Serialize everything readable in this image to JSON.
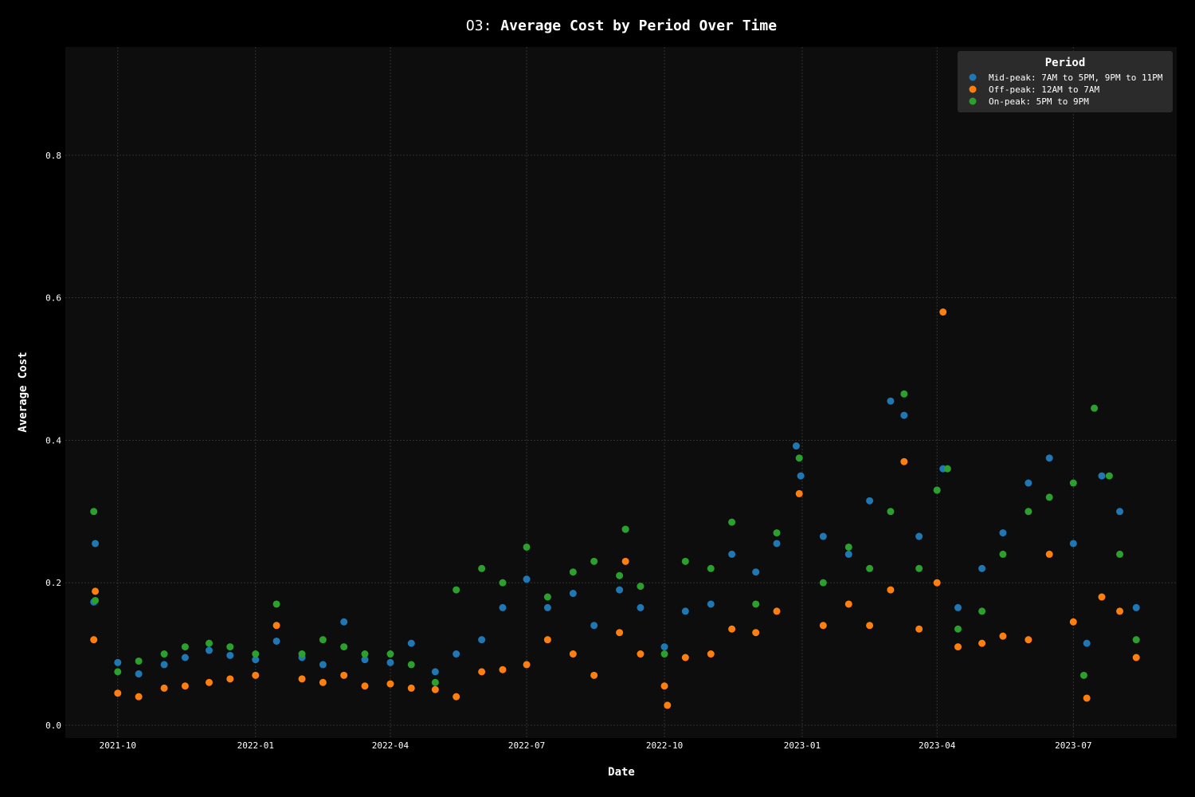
{
  "chart_data": {
    "type": "scatter",
    "title_prefix": "O3:",
    "title_main": "Average Cost by Period Over Time",
    "xlabel": "Date",
    "ylabel": "Average Cost",
    "ylim": [
      -0.018,
      0.952
    ],
    "xlim": [
      "2021-08-27",
      "2023-09-08"
    ],
    "yticks": [
      0.0,
      0.2,
      0.4,
      0.6,
      0.8
    ],
    "ytick_labels": [
      "0.0",
      "0.2",
      "0.4",
      "0.6",
      "0.8"
    ],
    "xticks": [
      "2021-10-01",
      "2022-01-01",
      "2022-04-01",
      "2022-07-01",
      "2022-10-01",
      "2023-01-01",
      "2023-04-01",
      "2023-07-01"
    ],
    "xtick_labels": [
      "2021-10",
      "2022-01",
      "2022-04",
      "2022-07",
      "2022-10",
      "2023-01",
      "2023-04",
      "2023-07"
    ],
    "grid": true,
    "legend": {
      "title": "Period",
      "position": "top-right"
    },
    "colors": {
      "background": "#000000",
      "plot_background": "#0d0d0d",
      "grid": "#3a3a3a",
      "legend_background": "#2b2b2b"
    },
    "series": [
      {
        "name": "Mid-peak: 7AM to 5PM, 9PM to 11PM",
        "color": "#1f77b4",
        "points": [
          [
            "2021-09-15",
            0.173
          ],
          [
            "2021-09-16",
            0.255
          ],
          [
            "2021-10-01",
            0.088
          ],
          [
            "2021-10-15",
            0.072
          ],
          [
            "2021-11-01",
            0.085
          ],
          [
            "2021-11-15",
            0.095
          ],
          [
            "2021-12-01",
            0.105
          ],
          [
            "2021-12-15",
            0.098
          ],
          [
            "2022-01-01",
            0.092
          ],
          [
            "2022-01-15",
            0.118
          ],
          [
            "2022-02-01",
            0.095
          ],
          [
            "2022-02-15",
            0.085
          ],
          [
            "2022-03-01",
            0.145
          ],
          [
            "2022-03-15",
            0.092
          ],
          [
            "2022-04-01",
            0.088
          ],
          [
            "2022-04-15",
            0.115
          ],
          [
            "2022-05-01",
            0.075
          ],
          [
            "2022-05-15",
            0.1
          ],
          [
            "2022-06-01",
            0.12
          ],
          [
            "2022-06-15",
            0.165
          ],
          [
            "2022-07-01",
            0.205
          ],
          [
            "2022-07-15",
            0.165
          ],
          [
            "2022-08-01",
            0.185
          ],
          [
            "2022-08-15",
            0.14
          ],
          [
            "2022-09-01",
            0.19
          ],
          [
            "2022-09-05",
            0.275
          ],
          [
            "2022-09-15",
            0.165
          ],
          [
            "2022-10-01",
            0.11
          ],
          [
            "2022-10-15",
            0.16
          ],
          [
            "2022-11-01",
            0.17
          ],
          [
            "2022-11-15",
            0.24
          ],
          [
            "2022-12-01",
            0.215
          ],
          [
            "2022-12-15",
            0.255
          ],
          [
            "2022-12-28",
            0.392
          ],
          [
            "2022-12-31",
            0.35
          ],
          [
            "2023-01-15",
            0.265
          ],
          [
            "2023-02-01",
            0.24
          ],
          [
            "2023-02-15",
            0.315
          ],
          [
            "2023-03-01",
            0.455
          ],
          [
            "2023-03-10",
            0.435
          ],
          [
            "2023-03-20",
            0.265
          ],
          [
            "2023-04-01",
            0.33
          ],
          [
            "2023-04-05",
            0.36
          ],
          [
            "2023-04-15",
            0.165
          ],
          [
            "2023-05-01",
            0.22
          ],
          [
            "2023-05-15",
            0.27
          ],
          [
            "2023-06-01",
            0.34
          ],
          [
            "2023-06-15",
            0.375
          ],
          [
            "2023-07-01",
            0.255
          ],
          [
            "2023-07-10",
            0.115
          ],
          [
            "2023-07-20",
            0.35
          ],
          [
            "2023-08-01",
            0.3
          ],
          [
            "2023-08-12",
            0.165
          ]
        ]
      },
      {
        "name": "Off-peak: 12AM to 7AM",
        "color": "#ff7f0e",
        "points": [
          [
            "2021-09-15",
            0.12
          ],
          [
            "2021-09-16",
            0.188
          ],
          [
            "2021-10-01",
            0.045
          ],
          [
            "2021-10-15",
            0.04
          ],
          [
            "2021-11-01",
            0.052
          ],
          [
            "2021-11-15",
            0.055
          ],
          [
            "2021-12-01",
            0.06
          ],
          [
            "2021-12-15",
            0.065
          ],
          [
            "2022-01-01",
            0.07
          ],
          [
            "2022-01-15",
            0.14
          ],
          [
            "2022-02-01",
            0.065
          ],
          [
            "2022-02-15",
            0.06
          ],
          [
            "2022-03-01",
            0.07
          ],
          [
            "2022-03-15",
            0.055
          ],
          [
            "2022-04-01",
            0.058
          ],
          [
            "2022-04-15",
            0.052
          ],
          [
            "2022-05-01",
            0.05
          ],
          [
            "2022-05-15",
            0.04
          ],
          [
            "2022-06-01",
            0.075
          ],
          [
            "2022-06-15",
            0.078
          ],
          [
            "2022-07-01",
            0.085
          ],
          [
            "2022-07-15",
            0.12
          ],
          [
            "2022-08-01",
            0.1
          ],
          [
            "2022-08-15",
            0.07
          ],
          [
            "2022-09-01",
            0.13
          ],
          [
            "2022-09-05",
            0.23
          ],
          [
            "2022-09-15",
            0.1
          ],
          [
            "2022-10-01",
            0.055
          ],
          [
            "2022-10-03",
            0.028
          ],
          [
            "2022-10-15",
            0.095
          ],
          [
            "2022-11-01",
            0.1
          ],
          [
            "2022-11-15",
            0.135
          ],
          [
            "2022-12-01",
            0.13
          ],
          [
            "2022-12-15",
            0.16
          ],
          [
            "2022-12-30",
            0.325
          ],
          [
            "2023-01-15",
            0.14
          ],
          [
            "2023-02-01",
            0.17
          ],
          [
            "2023-02-15",
            0.14
          ],
          [
            "2023-03-01",
            0.19
          ],
          [
            "2023-03-10",
            0.37
          ],
          [
            "2023-03-20",
            0.135
          ],
          [
            "2023-04-01",
            0.2
          ],
          [
            "2023-04-05",
            0.58
          ],
          [
            "2023-04-15",
            0.11
          ],
          [
            "2023-05-01",
            0.115
          ],
          [
            "2023-05-15",
            0.125
          ],
          [
            "2023-06-01",
            0.12
          ],
          [
            "2023-06-15",
            0.24
          ],
          [
            "2023-07-01",
            0.145
          ],
          [
            "2023-07-10",
            0.038
          ],
          [
            "2023-07-20",
            0.18
          ],
          [
            "2023-08-01",
            0.16
          ],
          [
            "2023-08-12",
            0.095
          ]
        ]
      },
      {
        "name": "On-peak: 5PM to 9PM",
        "color": "#2ca02c",
        "points": [
          [
            "2021-09-15",
            0.3
          ],
          [
            "2021-09-16",
            0.175
          ],
          [
            "2021-10-01",
            0.075
          ],
          [
            "2021-10-15",
            0.09
          ],
          [
            "2021-11-01",
            0.1
          ],
          [
            "2021-11-15",
            0.11
          ],
          [
            "2021-12-01",
            0.115
          ],
          [
            "2021-12-15",
            0.11
          ],
          [
            "2022-01-01",
            0.1
          ],
          [
            "2022-01-15",
            0.17
          ],
          [
            "2022-02-01",
            0.1
          ],
          [
            "2022-02-15",
            0.12
          ],
          [
            "2022-03-01",
            0.11
          ],
          [
            "2022-03-15",
            0.1
          ],
          [
            "2022-04-01",
            0.1
          ],
          [
            "2022-04-15",
            0.085
          ],
          [
            "2022-05-01",
            0.06
          ],
          [
            "2022-05-15",
            0.19
          ],
          [
            "2022-06-01",
            0.22
          ],
          [
            "2022-06-15",
            0.2
          ],
          [
            "2022-07-01",
            0.25
          ],
          [
            "2022-07-15",
            0.18
          ],
          [
            "2022-08-01",
            0.215
          ],
          [
            "2022-08-15",
            0.23
          ],
          [
            "2022-09-01",
            0.21
          ],
          [
            "2022-09-05",
            0.275
          ],
          [
            "2022-09-15",
            0.195
          ],
          [
            "2022-10-01",
            0.1
          ],
          [
            "2022-10-15",
            0.23
          ],
          [
            "2022-11-01",
            0.22
          ],
          [
            "2022-11-15",
            0.285
          ],
          [
            "2022-12-01",
            0.17
          ],
          [
            "2022-12-15",
            0.27
          ],
          [
            "2022-12-30",
            0.375
          ],
          [
            "2023-01-15",
            0.2
          ],
          [
            "2023-02-01",
            0.25
          ],
          [
            "2023-02-15",
            0.22
          ],
          [
            "2023-03-01",
            0.3
          ],
          [
            "2023-03-10",
            0.465
          ],
          [
            "2023-03-20",
            0.22
          ],
          [
            "2023-04-01",
            0.33
          ],
          [
            "2023-04-08",
            0.36
          ],
          [
            "2023-04-15",
            0.135
          ],
          [
            "2023-05-01",
            0.16
          ],
          [
            "2023-05-15",
            0.24
          ],
          [
            "2023-06-01",
            0.3
          ],
          [
            "2023-06-15",
            0.32
          ],
          [
            "2023-07-01",
            0.34
          ],
          [
            "2023-07-08",
            0.07
          ],
          [
            "2023-07-15",
            0.445
          ],
          [
            "2023-07-25",
            0.35
          ],
          [
            "2023-08-01",
            0.24
          ],
          [
            "2023-08-12",
            0.12
          ]
        ]
      }
    ]
  }
}
